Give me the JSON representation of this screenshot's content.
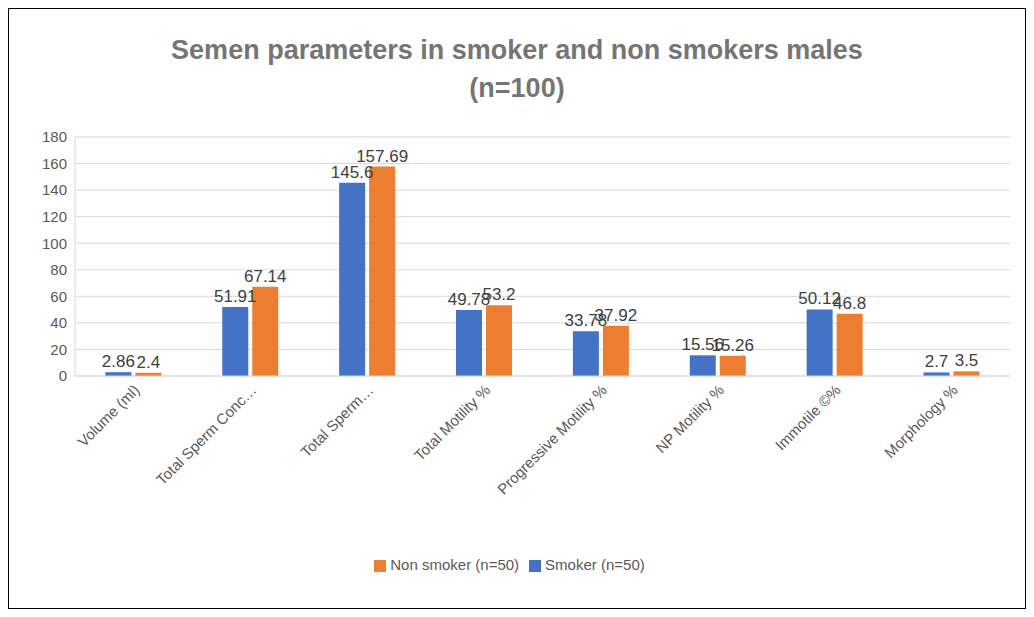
{
  "chart_data": {
    "type": "bar",
    "title": "Semen parameters in smoker and non smokers males\n(n=100)",
    "categories": [
      "Volume (ml)",
      "Total Sperm Conc…",
      "Total Sperm…",
      "Total Motility %",
      "Progressive Motility %",
      "NP Motility %",
      "Immotile ©%",
      "Morphology %"
    ],
    "series": [
      {
        "name": "Smoker (n=50)",
        "color": "#4472c4",
        "values": [
          2.86,
          51.91,
          145.6,
          49.78,
          33.78,
          15.56,
          50.12,
          2.7
        ]
      },
      {
        "name": "Non smoker (n=50)",
        "color": "#ed7d31",
        "values": [
          2.4,
          67.14,
          157.69,
          53.2,
          37.92,
          15.26,
          46.8,
          3.5
        ]
      }
    ],
    "ylim": [
      0,
      180
    ],
    "yticks": [
      0,
      20,
      40,
      60,
      80,
      100,
      120,
      140,
      160,
      180
    ],
    "grid": true,
    "data_labels": true,
    "legend": "bottom"
  }
}
